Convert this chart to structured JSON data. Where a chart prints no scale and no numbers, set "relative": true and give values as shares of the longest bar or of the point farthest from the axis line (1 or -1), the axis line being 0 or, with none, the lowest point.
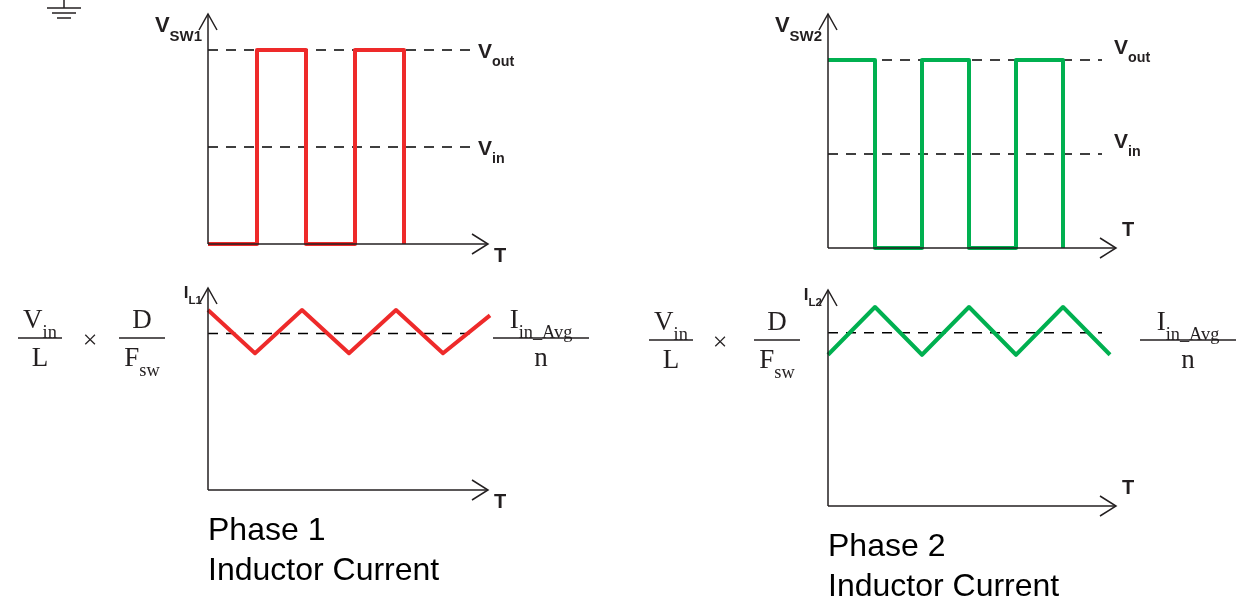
{
  "chart_data": [
    {
      "type": "step",
      "relative": true,
      "ylabel": "V$_{SW1}$",
      "xlabel": "T",
      "categories": [
        null,
        null,
        null,
        null,
        null
      ],
      "series": [
        {
          "color": "#ee2a2a",
          "values": [
            0,
            1,
            0,
            1,
            0
          ]
        }
      ],
      "ref_lines": [
        {
          "axis": "y",
          "value": 1,
          "label": "V$_{out}$",
          "color": "#000000",
          "line_style": "dashed"
        },
        {
          "axis": "y",
          "value": 0.5,
          "label": "V$_{in}$",
          "color": "#000000",
          "line_style": "dashed"
        }
      ]
    },
    {
      "type": "line",
      "relative": true,
      "ylabel": "I$_{L1}$",
      "xlabel": "T",
      "categories": [
        null,
        null,
        null,
        null,
        null,
        null,
        null
      ],
      "series": [
        {
          "color": "#ee2a2a",
          "values": [
            1,
            0.76,
            1,
            0.76,
            1,
            0.76,
            0.97
          ]
        }
      ],
      "ref_lines": [
        {
          "axis": "y",
          "value": 0.87,
          "color": "#000000",
          "line_style": "dashed"
        }
      ],
      "annotations": [
        "V$_{in}$",
        "L",
        "×",
        "D",
        "F$_{sw}$",
        "I$_{in_Avg}$",
        "n",
        "Phase 1",
        "Inductor Current"
      ]
    },
    {
      "type": "step",
      "relative": true,
      "ylabel": "V$_{SW2}$",
      "xlabel": "T",
      "categories": [
        null,
        null,
        null,
        null,
        null,
        null
      ],
      "series": [
        {
          "color": "#00b050",
          "values": [
            1,
            0,
            1,
            0,
            1,
            0
          ]
        }
      ],
      "ref_lines": [
        {
          "axis": "y",
          "value": 1,
          "label": "V$_{out}$",
          "color": "#000000",
          "line_style": "dashed"
        },
        {
          "axis": "y",
          "value": 0.5,
          "label": "V$_{in}$",
          "color": "#000000",
          "line_style": "dashed"
        }
      ]
    },
    {
      "type": "line",
      "relative": true,
      "ylabel": "I$_{L2}$",
      "xlabel": "T",
      "categories": [
        null,
        null,
        null,
        null,
        null,
        null,
        null
      ],
      "series": [
        {
          "color": "#00b050",
          "values": [
            0.76,
            1,
            0.76,
            1,
            0.76,
            1,
            0.76
          ]
        }
      ],
      "ref_lines": [
        {
          "axis": "y",
          "value": 0.87,
          "color": "#000000",
          "line_style": "dashed"
        }
      ],
      "annotations": [
        "V$_{in}$",
        "L",
        "×",
        "D",
        "F$_{sw}$",
        "I$_{in_Avg}$",
        "n",
        "Phase 2",
        "Inductor Current"
      ]
    }
  ]
}
